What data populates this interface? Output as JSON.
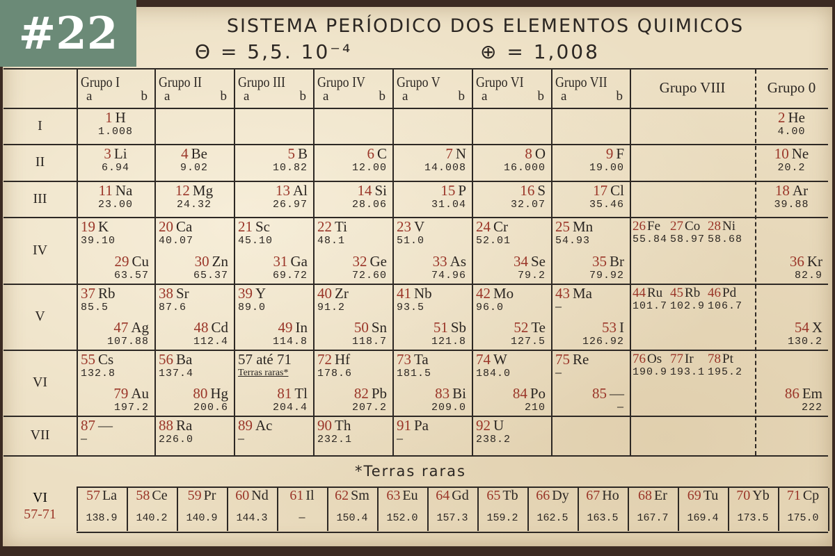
{
  "badge": "#22",
  "title": "SISTEMA PERÍODICO DOS ELEMENTOS QUIMICOS",
  "formula": {
    "electron": "Θ = 5,5. 10⁻⁴",
    "proton": "⊕ = 1,008"
  },
  "colors": {
    "number": "#9a3528",
    "badge": "#6b8a77",
    "paper": "#ecdfc3"
  },
  "groups": [
    {
      "name": "Grupo I",
      "a": "a",
      "b": "b"
    },
    {
      "name": "Grupo II",
      "a": "a",
      "b": "b"
    },
    {
      "name": "Grupo III",
      "a": "a",
      "b": "b"
    },
    {
      "name": "Grupo IV",
      "a": "a",
      "b": "b"
    },
    {
      "name": "Grupo V",
      "a": "a",
      "b": "b"
    },
    {
      "name": "Grupo VI",
      "a": "a",
      "b": "b"
    },
    {
      "name": "Grupo VII",
      "a": "a",
      "b": "b"
    },
    {
      "name": "Grupo VIII"
    },
    {
      "name": "Grupo 0"
    }
  ],
  "rows": [
    {
      "label": "I",
      "cells": [
        [
          {
            "pos": "c",
            "num": "1",
            "sym": "H",
            "wt": "1.008"
          }
        ],
        [],
        [],
        [],
        [],
        [],
        [],
        [],
        [
          {
            "pos": "c",
            "num": "2",
            "sym": "He",
            "wt": "4.00"
          }
        ]
      ]
    },
    {
      "label": "II",
      "cells": [
        [
          {
            "pos": "c",
            "num": "3",
            "sym": "Li",
            "wt": "6.94"
          }
        ],
        [
          {
            "pos": "c",
            "num": "4",
            "sym": "Be",
            "wt": "9.02"
          }
        ],
        [
          {
            "pos": "r",
            "num": "5",
            "sym": "B",
            "wt": "10.82"
          }
        ],
        [
          {
            "pos": "r",
            "num": "6",
            "sym": "C",
            "wt": "12.00"
          }
        ],
        [
          {
            "pos": "r",
            "num": "7",
            "sym": "N",
            "wt": "14.008"
          }
        ],
        [
          {
            "pos": "r",
            "num": "8",
            "sym": "O",
            "wt": "16.000"
          }
        ],
        [
          {
            "pos": "r",
            "num": "9",
            "sym": "F",
            "wt": "19.00"
          }
        ],
        [],
        [
          {
            "pos": "c",
            "num": "10",
            "sym": "Ne",
            "wt": "20.2"
          }
        ]
      ]
    },
    {
      "label": "III",
      "cells": [
        [
          {
            "pos": "c",
            "num": "11",
            "sym": "Na",
            "wt": "23.00"
          }
        ],
        [
          {
            "pos": "c",
            "num": "12",
            "sym": "Mg",
            "wt": "24.32"
          }
        ],
        [
          {
            "pos": "r",
            "num": "13",
            "sym": "Al",
            "wt": "26.97"
          }
        ],
        [
          {
            "pos": "r",
            "num": "14",
            "sym": "Si",
            "wt": "28.06"
          }
        ],
        [
          {
            "pos": "r",
            "num": "15",
            "sym": "P",
            "wt": "31.04"
          }
        ],
        [
          {
            "pos": "r",
            "num": "16",
            "sym": "S",
            "wt": "32.07"
          }
        ],
        [
          {
            "pos": "r",
            "num": "17",
            "sym": "Cl",
            "wt": "35.46"
          }
        ],
        [],
        [
          {
            "pos": "c",
            "num": "18",
            "sym": "Ar",
            "wt": "39.88"
          }
        ]
      ]
    },
    {
      "label": "IV",
      "cells": [
        [
          {
            "pos": "a",
            "num": "19",
            "sym": "K",
            "wt": "39.10"
          },
          {
            "pos": "b",
            "num": "29",
            "sym": "Cu",
            "wt": "63.57"
          }
        ],
        [
          {
            "pos": "a",
            "num": "20",
            "sym": "Ca",
            "wt": "40.07"
          },
          {
            "pos": "b",
            "num": "30",
            "sym": "Zn",
            "wt": "65.37"
          }
        ],
        [
          {
            "pos": "a",
            "num": "21",
            "sym": "Sc",
            "wt": "45.10"
          },
          {
            "pos": "b",
            "num": "31",
            "sym": "Ga",
            "wt": "69.72"
          }
        ],
        [
          {
            "pos": "a",
            "num": "22",
            "sym": "Ti",
            "wt": "48.1"
          },
          {
            "pos": "b",
            "num": "32",
            "sym": "Ge",
            "wt": "72.60"
          }
        ],
        [
          {
            "pos": "a",
            "num": "23",
            "sym": "V",
            "wt": "51.0"
          },
          {
            "pos": "b",
            "num": "33",
            "sym": "As",
            "wt": "74.96"
          }
        ],
        [
          {
            "pos": "a",
            "num": "24",
            "sym": "Cr",
            "wt": "52.01"
          },
          {
            "pos": "b",
            "num": "34",
            "sym": "Se",
            "wt": "79.2"
          }
        ],
        [
          {
            "pos": "a",
            "num": "25",
            "sym": "Mn",
            "wt": "54.93"
          },
          {
            "pos": "b",
            "num": "35",
            "sym": "Br",
            "wt": "79.92"
          }
        ],
        [
          {
            "pos": "t",
            "num": "26",
            "sym": "Fe",
            "wt": "55.84"
          },
          {
            "pos": "t",
            "num": "27",
            "sym": "Co",
            "wt": "58.97"
          },
          {
            "pos": "t",
            "num": "28",
            "sym": "Ni",
            "wt": "58.68"
          }
        ],
        [
          {
            "pos": "b",
            "num": "36",
            "sym": "Kr",
            "wt": "82.9"
          }
        ]
      ]
    },
    {
      "label": "V",
      "cells": [
        [
          {
            "pos": "a",
            "num": "37",
            "sym": "Rb",
            "wt": "85.5"
          },
          {
            "pos": "b",
            "num": "47",
            "sym": "Ag",
            "wt": "107.88"
          }
        ],
        [
          {
            "pos": "a",
            "num": "38",
            "sym": "Sr",
            "wt": "87.6"
          },
          {
            "pos": "b",
            "num": "48",
            "sym": "Cd",
            "wt": "112.4"
          }
        ],
        [
          {
            "pos": "a",
            "num": "39",
            "sym": "Y",
            "wt": "89.0"
          },
          {
            "pos": "b",
            "num": "49",
            "sym": "In",
            "wt": "114.8"
          }
        ],
        [
          {
            "pos": "a",
            "num": "40",
            "sym": "Zr",
            "wt": "91.2"
          },
          {
            "pos": "b",
            "num": "50",
            "sym": "Sn",
            "wt": "118.7"
          }
        ],
        [
          {
            "pos": "a",
            "num": "41",
            "sym": "Nb",
            "wt": "93.5"
          },
          {
            "pos": "b",
            "num": "51",
            "sym": "Sb",
            "wt": "121.8"
          }
        ],
        [
          {
            "pos": "a",
            "num": "42",
            "sym": "Mo",
            "wt": "96.0"
          },
          {
            "pos": "b",
            "num": "52",
            "sym": "Te",
            "wt": "127.5"
          }
        ],
        [
          {
            "pos": "a",
            "num": "43",
            "sym": "Ma",
            "wt": "—"
          },
          {
            "pos": "b",
            "num": "53",
            "sym": "I",
            "wt": "126.92"
          }
        ],
        [
          {
            "pos": "t",
            "num": "44",
            "sym": "Ru",
            "wt": "101.7"
          },
          {
            "pos": "t",
            "num": "45",
            "sym": "Rb",
            "wt": "102.9"
          },
          {
            "pos": "t",
            "num": "46",
            "sym": "Pd",
            "wt": "106.7"
          }
        ],
        [
          {
            "pos": "b",
            "num": "54",
            "sym": "X",
            "wt": "130.2"
          }
        ]
      ]
    },
    {
      "label": "VI",
      "cells": [
        [
          {
            "pos": "a",
            "num": "55",
            "sym": "Cs",
            "wt": "132.8"
          },
          {
            "pos": "b",
            "num": "79",
            "sym": "Au",
            "wt": "197.2"
          }
        ],
        [
          {
            "pos": "a",
            "num": "56",
            "sym": "Ba",
            "wt": "137.4"
          },
          {
            "pos": "b",
            "num": "80",
            "sym": "Hg",
            "wt": "200.6"
          }
        ],
        [
          {
            "pos": "a",
            "num": "57 até 71",
            "sym": "",
            "wt": "Terras raras*"
          },
          {
            "pos": "b",
            "num": "81",
            "sym": "Tl",
            "wt": "204.4"
          }
        ],
        [
          {
            "pos": "a",
            "num": "72",
            "sym": "Hf",
            "wt": "178.6"
          },
          {
            "pos": "b",
            "num": "82",
            "sym": "Pb",
            "wt": "207.2"
          }
        ],
        [
          {
            "pos": "a",
            "num": "73",
            "sym": "Ta",
            "wt": "181.5"
          },
          {
            "pos": "b",
            "num": "83",
            "sym": "Bi",
            "wt": "209.0"
          }
        ],
        [
          {
            "pos": "a",
            "num": "74",
            "sym": "W",
            "wt": "184.0"
          },
          {
            "pos": "b",
            "num": "84",
            "sym": "Po",
            "wt": "210"
          }
        ],
        [
          {
            "pos": "a",
            "num": "75",
            "sym": "Re",
            "wt": "—"
          },
          {
            "pos": "b",
            "num": "85",
            "sym": "—",
            "wt": "—"
          }
        ],
        [
          {
            "pos": "t",
            "num": "76",
            "sym": "Os",
            "wt": "190.9"
          },
          {
            "pos": "t",
            "num": "77",
            "sym": "Ir",
            "wt": "193.1"
          },
          {
            "pos": "t",
            "num": "78",
            "sym": "Pt",
            "wt": "195.2"
          }
        ],
        [
          {
            "pos": "b",
            "num": "86",
            "sym": "Em",
            "wt": "222"
          }
        ]
      ]
    },
    {
      "label": "VII",
      "cells": [
        [
          {
            "pos": "a",
            "num": "87",
            "sym": "—",
            "wt": "—"
          }
        ],
        [
          {
            "pos": "a",
            "num": "88",
            "sym": "Ra",
            "wt": "226.0"
          }
        ],
        [
          {
            "pos": "a",
            "num": "89",
            "sym": "Ac",
            "wt": "—"
          }
        ],
        [
          {
            "pos": "a",
            "num": "90",
            "sym": "Th",
            "wt": "232.1"
          }
        ],
        [
          {
            "pos": "a",
            "num": "91",
            "sym": "Pa",
            "wt": "—"
          }
        ],
        [
          {
            "pos": "a",
            "num": "92",
            "sym": "U",
            "wt": "238.2"
          }
        ],
        [],
        [],
        []
      ]
    }
  ],
  "rare_earths": {
    "label": "*Terras raras",
    "row_label": "VI",
    "row_range": "57-71",
    "elements": [
      {
        "num": "57",
        "sym": "La",
        "wt": "138.9"
      },
      {
        "num": "58",
        "sym": "Ce",
        "wt": "140.2"
      },
      {
        "num": "59",
        "sym": "Pr",
        "wt": "140.9"
      },
      {
        "num": "60",
        "sym": "Nd",
        "wt": "144.3"
      },
      {
        "num": "61",
        "sym": "Il",
        "wt": "—"
      },
      {
        "num": "62",
        "sym": "Sm",
        "wt": "150.4"
      },
      {
        "num": "63",
        "sym": "Eu",
        "wt": "152.0"
      },
      {
        "num": "64",
        "sym": "Gd",
        "wt": "157.3"
      },
      {
        "num": "65",
        "sym": "Tb",
        "wt": "159.2"
      },
      {
        "num": "66",
        "sym": "Dy",
        "wt": "162.5"
      },
      {
        "num": "67",
        "sym": "Ho",
        "wt": "163.5"
      },
      {
        "num": "68",
        "sym": "Er",
        "wt": "167.7"
      },
      {
        "num": "69",
        "sym": "Tu",
        "wt": "169.4"
      },
      {
        "num": "70",
        "sym": "Yb",
        "wt": "173.5"
      },
      {
        "num": "71",
        "sym": "Cp",
        "wt": "175.0"
      }
    ]
  }
}
